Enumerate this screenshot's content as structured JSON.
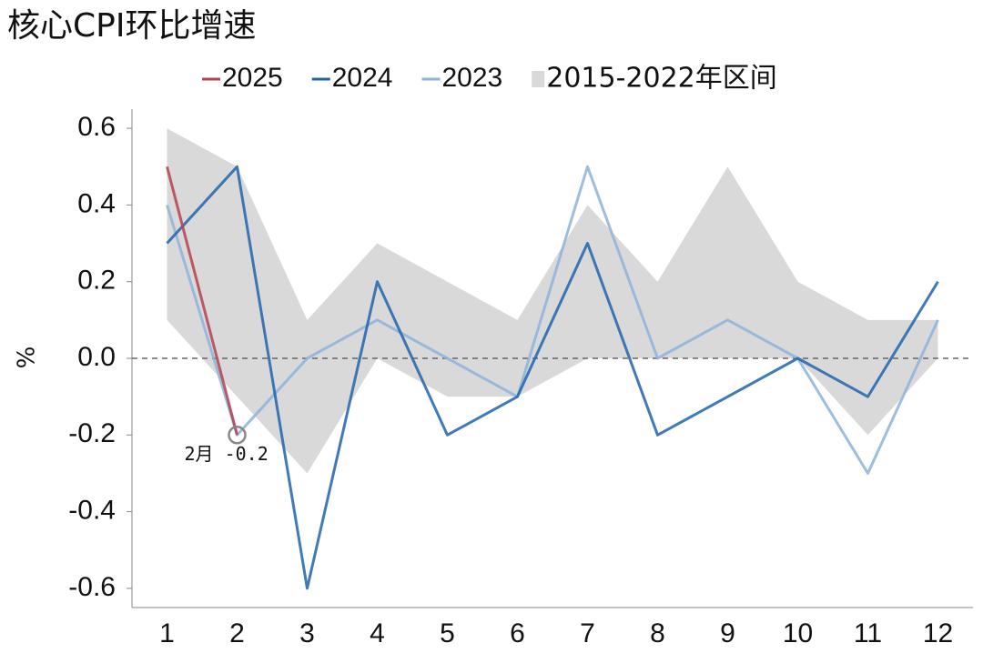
{
  "chart_data": {
    "type": "line",
    "title": "核心CPI环比增速",
    "ylabel": "%",
    "x": [
      1,
      2,
      3,
      4,
      5,
      6,
      7,
      8,
      9,
      10,
      11,
      12
    ],
    "xlim": [
      0.5,
      12.5
    ],
    "ylim": [
      -0.65,
      0.65
    ],
    "yticks": [
      -0.6,
      -0.4,
      -0.2,
      {
        "value": 0,
        "label": "0.0"
      },
      0.2,
      0.4,
      0.6
    ],
    "zero_line": true,
    "band": {
      "name": "2015-2022年区间",
      "color": "#d9d9d9",
      "upper": [
        0.6,
        0.5,
        0.1,
        0.3,
        0.2,
        0.1,
        0.4,
        0.2,
        0.5,
        0.2,
        0.1,
        0.1
      ],
      "lower": [
        0.1,
        -0.1,
        -0.3,
        0.0,
        -0.1,
        -0.1,
        0.0,
        0.0,
        0.0,
        0.0,
        -0.2,
        0.0
      ]
    },
    "series": [
      {
        "name": "2025",
        "color": "#b5404f",
        "values": [
          0.5,
          -0.2,
          null,
          null,
          null,
          null,
          null,
          null,
          null,
          null,
          null,
          null
        ]
      },
      {
        "name": "2024",
        "color": "#1f63ad",
        "values": [
          0.3,
          0.5,
          -0.6,
          0.2,
          -0.2,
          -0.1,
          0.3,
          -0.2,
          -0.1,
          0.0,
          -0.1,
          0.2
        ]
      },
      {
        "name": "2023",
        "color": "#8db3d9",
        "values": [
          0.4,
          -0.2,
          0.0,
          0.1,
          0.0,
          -0.1,
          0.5,
          0.0,
          0.1,
          0.0,
          -0.3,
          0.1
        ]
      }
    ],
    "annotation": "2月 -0.2"
  }
}
